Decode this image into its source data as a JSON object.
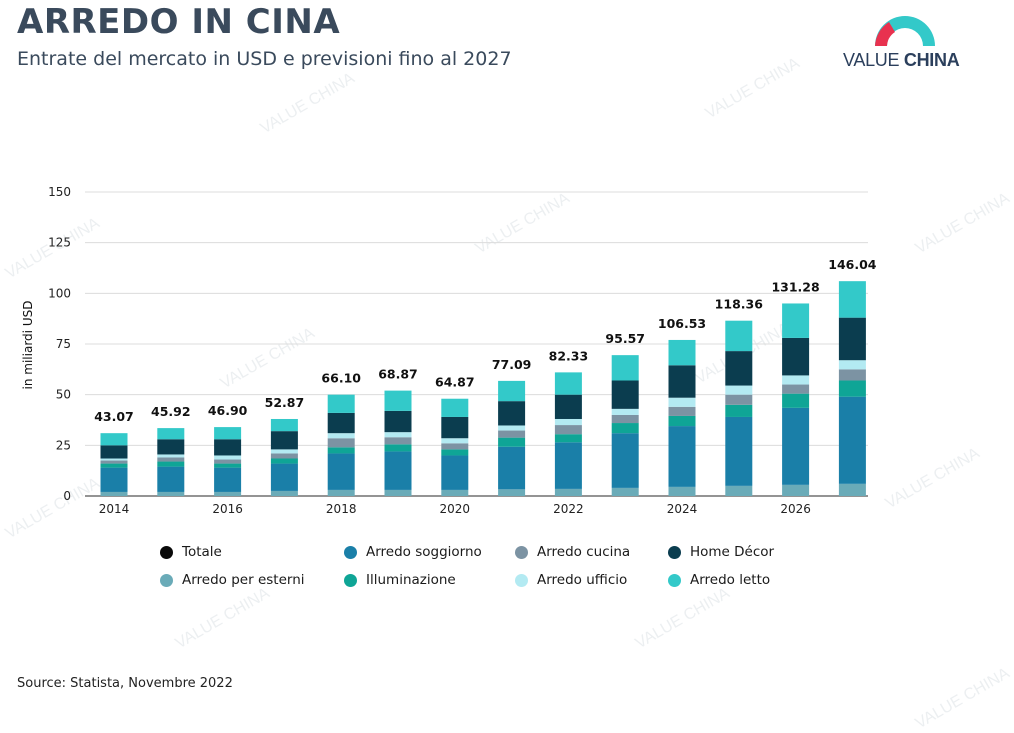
{
  "header": {
    "title": "ARREDO IN CINA",
    "subtitle": "Entrate del mercato in USD e previsioni fino al 2027"
  },
  "logo": {
    "text_light": "VALUE ",
    "text_bold": "CHINA"
  },
  "watermark": "VALUE CHINA",
  "source": "Source: Statista, Novembre 2022",
  "colors": {
    "totale": "#0a0a0a",
    "esterni": "#6aabb8",
    "soggiorno": "#1a7fa8",
    "illuminazione": "#0fa596",
    "cucina": "#7c93a3",
    "ufficio": "#b3eaf2",
    "home_decor": "#0b3d4f",
    "letto": "#33c9c9"
  },
  "chart_data": {
    "type": "bar",
    "stacked": true,
    "title": "",
    "xlabel": "",
    "ylabel": "in miliardi USD",
    "ylim": [
      0,
      150
    ],
    "yticks": [
      0,
      25,
      50,
      75,
      100,
      125,
      150
    ],
    "grid": true,
    "legend_position": "bottom",
    "categories": [
      "2014",
      "2015",
      "2016",
      "2017",
      "2018",
      "2019",
      "2020",
      "2021",
      "2022",
      "2023",
      "2024",
      "2025",
      "2026",
      "2027"
    ],
    "xtick_labels": [
      "2014",
      "2016",
      "2018",
      "2020",
      "2022",
      "2024",
      "2026"
    ],
    "series": [
      {
        "name": "Arredo per esterni",
        "key": "esterni",
        "values": [
          2,
          2,
          2,
          2.5,
          3,
          3,
          3,
          3.3,
          3.5,
          4,
          4.5,
          5,
          5.5,
          6
        ]
      },
      {
        "name": "Arredo soggiorno",
        "key": "soggiorno",
        "values": [
          12,
          12.5,
          12,
          13.5,
          18,
          19,
          17,
          21,
          23,
          27,
          30,
          34,
          38,
          43
        ]
      },
      {
        "name": "Illuminazione",
        "key": "illuminazione",
        "values": [
          2,
          2.5,
          2,
          2.5,
          3,
          3.5,
          3,
          4.5,
          4,
          5,
          5,
          6,
          7,
          8
        ]
      },
      {
        "name": "Arredo cucina",
        "key": "cucina",
        "values": [
          1.5,
          2,
          2,
          2.5,
          4.5,
          3.5,
          3,
          3.5,
          4.5,
          4,
          4.5,
          5,
          4.5,
          5.5
        ]
      },
      {
        "name": "Arredo ufficio",
        "key": "ufficio",
        "values": [
          1,
          1.5,
          2,
          2,
          2.5,
          2.5,
          2.5,
          2.5,
          3,
          3,
          4.5,
          4.5,
          4.5,
          4.5
        ]
      },
      {
        "name": "Home Décor",
        "key": "home_decor",
        "values": [
          6.5,
          7.5,
          8,
          9,
          10,
          10.5,
          10.5,
          12,
          12,
          14,
          16,
          17,
          18.5,
          21
        ]
      },
      {
        "name": "Arredo letto",
        "key": "letto",
        "values": [
          6,
          5.5,
          6,
          6,
          9,
          10,
          9,
          10,
          11,
          12.5,
          12.5,
          15,
          17,
          18
        ]
      }
    ],
    "totals": {
      "name": "Totale",
      "values": [
        43.07,
        45.92,
        46.9,
        52.87,
        66.1,
        68.87,
        64.87,
        77.09,
        82.33,
        95.57,
        106.53,
        118.36,
        131.28,
        146.04
      ]
    }
  },
  "legend": [
    {
      "label": "Totale",
      "key": "totale"
    },
    {
      "label": "Arredo soggiorno",
      "key": "soggiorno"
    },
    {
      "label": "Arredo cucina",
      "key": "cucina"
    },
    {
      "label": "Home Décor",
      "key": "home_decor"
    },
    {
      "label": "Arredo per esterni",
      "key": "esterni"
    },
    {
      "label": "Illuminazione",
      "key": "illuminazione"
    },
    {
      "label": "Arredo ufficio",
      "key": "ufficio"
    },
    {
      "label": "Arredo letto",
      "key": "letto"
    }
  ]
}
